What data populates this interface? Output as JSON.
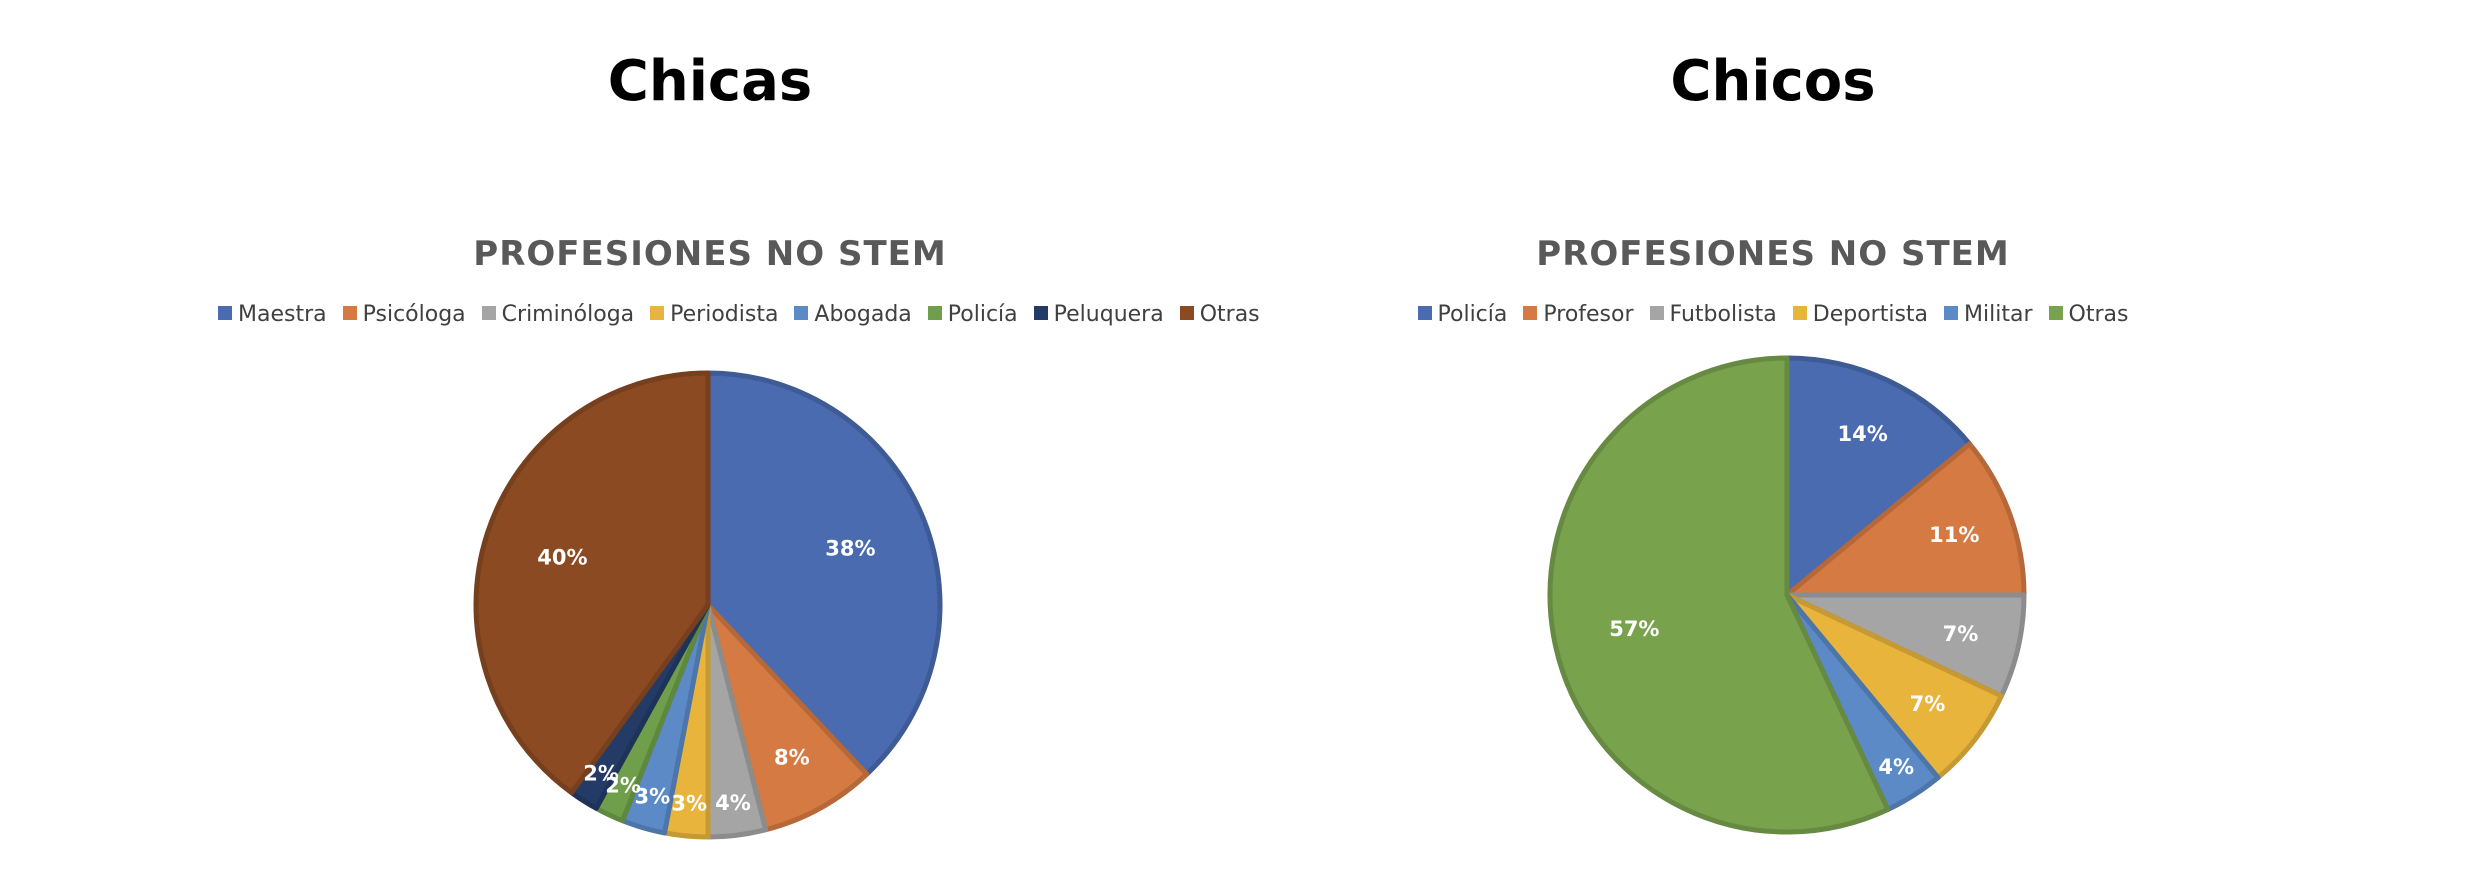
{
  "page": {
    "heading_left": "Chicas",
    "heading_right": "Chicos"
  },
  "chart_data": [
    {
      "type": "pie",
      "title": "PROFESIONES NO STEM",
      "legend_position": "top",
      "labels": [
        "Maestra",
        "Psicóloga",
        "Criminóloga",
        "Periodista",
        "Abogada",
        "Policía",
        "Peluquera",
        "Otras"
      ],
      "values": [
        38,
        8,
        4,
        3,
        3,
        2,
        2,
        40
      ],
      "data_labels": [
        "38%",
        "8%",
        "4%",
        "3%",
        "3%",
        "2%",
        "2%",
        "40%"
      ],
      "colors": [
        "#4a6baf",
        "#d67a43",
        "#a5a5a5",
        "#e8b43c",
        "#5b8ac7",
        "#6f9f4a",
        "#243b68",
        "#8b4a22"
      ],
      "start_angle_deg": 0,
      "direction": "clockwise"
    },
    {
      "type": "pie",
      "title": "PROFESIONES NO STEM",
      "legend_position": "top",
      "labels": [
        "Policía",
        "Profesor",
        "Futbolista",
        "Deportista",
        "Militar",
        "Otras"
      ],
      "values": [
        14,
        11,
        7,
        7,
        4,
        57
      ],
      "data_labels": [
        "14%",
        "11%",
        "7%",
        "7%",
        "4%",
        "57%"
      ],
      "colors": [
        "#4a6baf",
        "#d67a43",
        "#a5a5a5",
        "#e8b43c",
        "#5b8ac7",
        "#78a24c"
      ],
      "start_angle_deg": 0,
      "direction": "clockwise"
    }
  ]
}
